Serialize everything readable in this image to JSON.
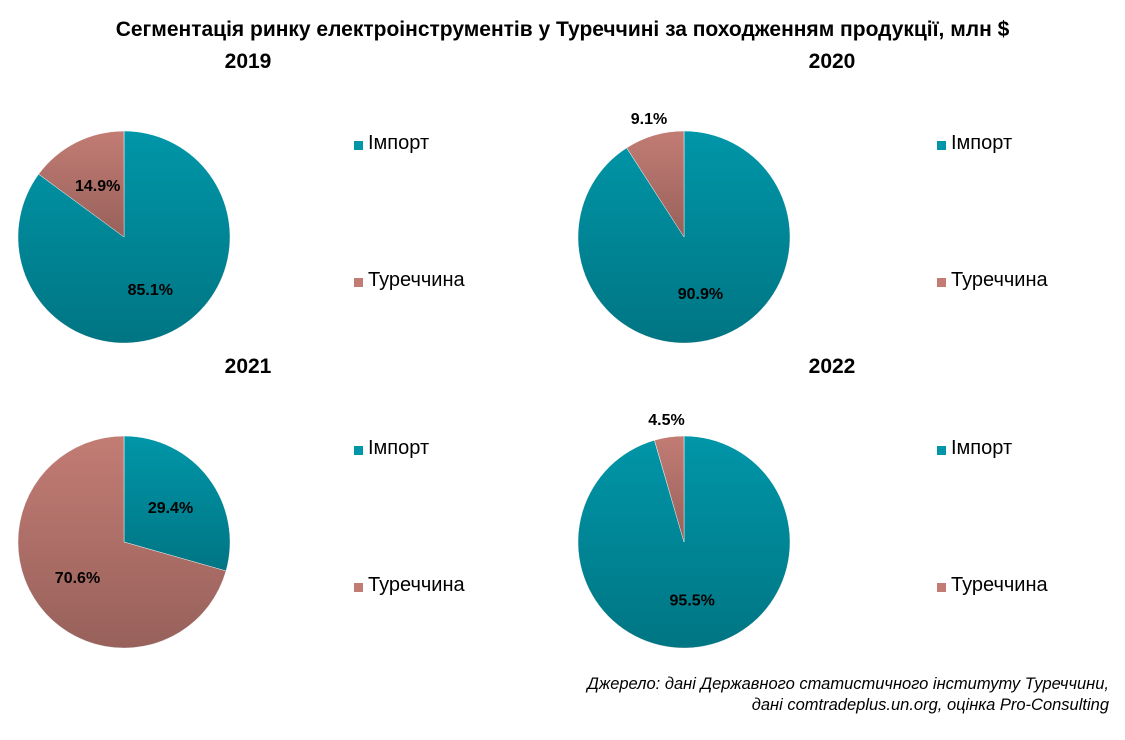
{
  "title": "Сегментація ринку електроінструментів у Туреччині за походженням продукції, млн $",
  "source": [
    "Джерело: дані Державного статистичного інституту Туреччини,",
    "дані comtradeplus.un.org, оцінка Pro-Consulting"
  ],
  "colors": {
    "import": "#0096a8",
    "turkey": "#c27c74"
  },
  "chart_data": [
    {
      "type": "pie",
      "title": "2019",
      "labels": [
        "Імпорт",
        "Туреччина"
      ],
      "values": [
        85.1,
        14.9
      ],
      "value_labels": [
        "85.1%",
        "14.9%"
      ],
      "legend": "right"
    },
    {
      "type": "pie",
      "title": "2020",
      "labels": [
        "Імпорт",
        "Туреччина"
      ],
      "values": [
        90.9,
        9.1
      ],
      "value_labels": [
        "90.9%",
        "9.1%"
      ],
      "legend": "right"
    },
    {
      "type": "pie",
      "title": "2021",
      "labels": [
        "Імпорт",
        "Туреччина"
      ],
      "values": [
        29.4,
        70.6
      ],
      "value_labels": [
        "29.4%",
        "70.6%"
      ],
      "legend": "right"
    },
    {
      "type": "pie",
      "title": "2022",
      "labels": [
        "Імпорт",
        "Туреччина"
      ],
      "values": [
        95.5,
        4.5
      ],
      "value_labels": [
        "95.5%",
        "4.5%"
      ],
      "legend": "right"
    }
  ]
}
